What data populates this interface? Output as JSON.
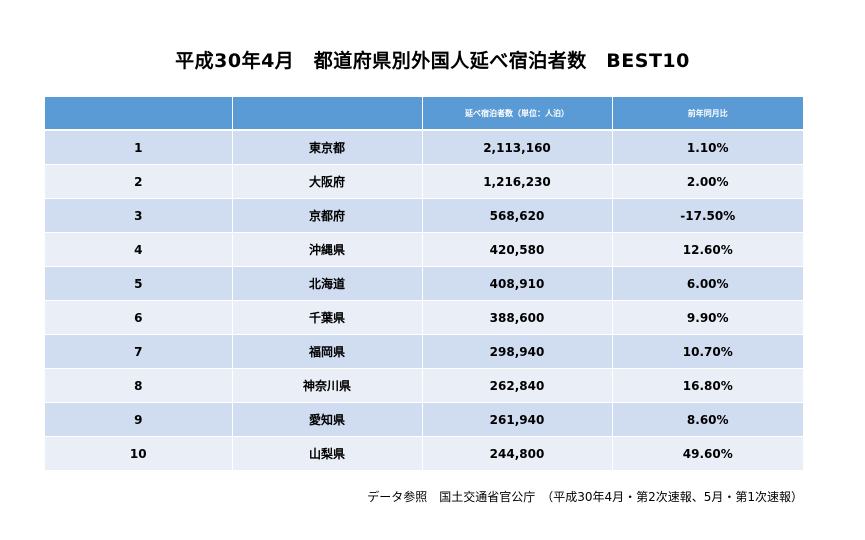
{
  "title": "平成30年4月　都道府県別外国人延べ宿泊者数　BEST10",
  "table": {
    "headers": [
      "",
      "",
      "延べ宿泊者数（単位：人泊）",
      "前年同月比"
    ],
    "rows": [
      {
        "rank": "1",
        "prefecture": "東京都",
        "guests": "2,113,160",
        "yoy": "1.10%"
      },
      {
        "rank": "2",
        "prefecture": "大阪府",
        "guests": "1,216,230",
        "yoy": "2.00%"
      },
      {
        "rank": "3",
        "prefecture": "京都府",
        "guests": "568,620",
        "yoy": "-17.50%"
      },
      {
        "rank": "4",
        "prefecture": "沖縄県",
        "guests": "420,580",
        "yoy": "12.60%"
      },
      {
        "rank": "5",
        "prefecture": "北海道",
        "guests": "408,910",
        "yoy": "6.00%"
      },
      {
        "rank": "6",
        "prefecture": "千葉県",
        "guests": "388,600",
        "yoy": "9.90%"
      },
      {
        "rank": "7",
        "prefecture": "福岡県",
        "guests": "298,940",
        "yoy": "10.70%"
      },
      {
        "rank": "8",
        "prefecture": "神奈川県",
        "guests": "262,840",
        "yoy": "16.80%"
      },
      {
        "rank": "9",
        "prefecture": "愛知県",
        "guests": "261,940",
        "yoy": "8.60%"
      },
      {
        "rank": "10",
        "prefecture": "山梨県",
        "guests": "244,800",
        "yoy": "49.60%"
      }
    ]
  },
  "source": "データ参照　国土交通省官公庁　（平成30年4月・第2次速報、5月・第1次速報）",
  "colors": {
    "header_bg": "#5b9bd5",
    "row_odd": "#d0dcef",
    "row_even": "#e9eef7"
  }
}
